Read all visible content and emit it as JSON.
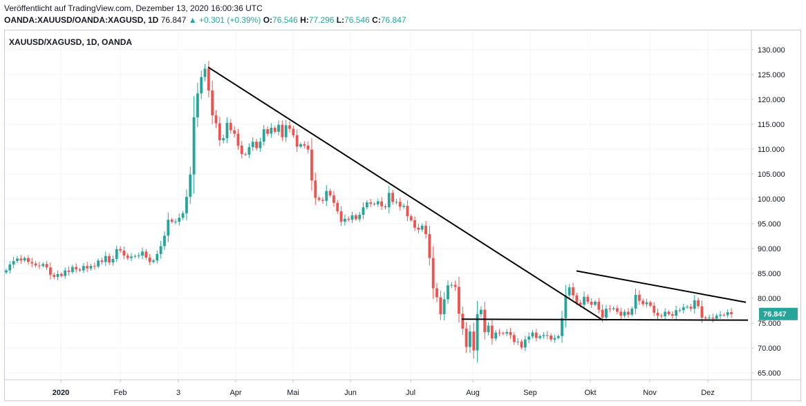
{
  "header": {
    "published": "Veröffentlicht auf TradingView.com, Dezember 13, 2020 16:00:36 UTC",
    "symbol": "OANDA:XAUUSD/OANDA:XAGUSD, 1D",
    "last": "76.847",
    "change": "▲ +0.301 (+0.39%)",
    "o_label": "O:",
    "o_value": "76.546",
    "h_label": "H:",
    "h_value": "77.296",
    "l_label": "L:",
    "l_value": "76.546",
    "c_label": "C:",
    "c_value": "76.847"
  },
  "colors": {
    "up": "#26a69a",
    "down": "#ef5350",
    "line": "#000000",
    "grid": "#f0f3fa",
    "axis": "#c8cbd3"
  },
  "chart_data": {
    "type": "candlestick",
    "title": "XAUUSD/XAGUSD, 1D, OANDA",
    "y_axis": {
      "ticks": [
        "130.000",
        "125.000",
        "120.000",
        "115.000",
        "110.000",
        "105.000",
        "100.000",
        "95.000",
        "90.000",
        "85.000",
        "80.000",
        "75.000",
        "70.000",
        "65.000"
      ],
      "range": [
        63.5,
        131.5
      ],
      "position": "right"
    },
    "x_axis": {
      "labels": [
        "2020",
        "Feb",
        "3",
        "Apr",
        "Mai",
        "Jun",
        "Jul",
        "Aug",
        "Sep",
        "Okt",
        "Nov",
        "Dez"
      ]
    },
    "last_price": "76.847",
    "trend_lines": [
      {
        "name": "descending-resistance",
        "from": [
          0.0,
          126.5
        ],
        "to": [
          1.0,
          75.6
        ]
      },
      {
        "name": "triangle-upper",
        "from": [
          0.0,
          85.5
        ],
        "to": [
          1.0,
          79.2
        ]
      },
      {
        "name": "triangle-base",
        "from": [
          0.0,
          75.8
        ],
        "to": [
          1.0,
          75.6
        ]
      }
    ],
    "closes": [
      85.6,
      86.8,
      87.5,
      88.0,
      87.6,
      88.1,
      87.3,
      87.0,
      86.6,
      86.5,
      86.9,
      86.2,
      84.7,
      84.3,
      84.9,
      84.5,
      85.6,
      85.3,
      86.3,
      85.8,
      85.6,
      86.5,
      86.0,
      86.5,
      86.4,
      87.6,
      87.3,
      88.5,
      87.2,
      87.9,
      89.9,
      89.6,
      88.6,
      88.1,
      88.4,
      88.5,
      88.6,
      89.4,
      88.2,
      87.3,
      87.6,
      88.9,
      90.5,
      92.6,
      95.8,
      95.4,
      95.4,
      96.2,
      97.1,
      100.4,
      104.9,
      116.4,
      121.2,
      124.5,
      126.2,
      121.8,
      116.8,
      115.2,
      111.8,
      112.2,
      115.3,
      113.8,
      113.1,
      110.7,
      109.0,
      108.9,
      110.4,
      111.5,
      110.2,
      111.5,
      114.0,
      113.1,
      114.3,
      113.5,
      114.9,
      112.4,
      114.8,
      114.1,
      112.8,
      110.5,
      111.0,
      110.7,
      109.9,
      103.7,
      100.2,
      99.8,
      99.6,
      101.6,
      100.7,
      99.2,
      97.5,
      95.4,
      96.0,
      95.8,
      96.7,
      95.9,
      96.8,
      98.3,
      99.3,
      99.0,
      98.9,
      99.5,
      98.5,
      98.3,
      101.2,
      99.4,
      99.4,
      98.4,
      98.6,
      96.5,
      95.7,
      94.2,
      93.8,
      94.6,
      92.9,
      88.1,
      82.0,
      80.2,
      76.8,
      79.8,
      82.6,
      82.7,
      82.3,
      76.9,
      73.9,
      70.2,
      73.3,
      69.5,
      76.8,
      77.7,
      73.2,
      74.5,
      71.9,
      73.1,
      73.0,
      72.9,
      73.2,
      72.6,
      71.2,
      71.3,
      70.1,
      71.7,
      72.3,
      73.1,
      72.0,
      72.4,
      72.6,
      72.5,
      71.7,
      72.0,
      72.4,
      76.0,
      80.6,
      82.2,
      80.6,
      79.1,
      78.7,
      80.3,
      79.3,
      78.7,
      79.3,
      77.7,
      76.1,
      77.9,
      77.8,
      78.0,
      77.3,
      76.5,
      77.3,
      76.7,
      77.9,
      80.7,
      79.5,
      78.8,
      79.2,
      78.5,
      77.1,
      76.5,
      76.4,
      77.3,
      76.8,
      76.5,
      77.6,
      77.6,
      78.2,
      78.3,
      77.9,
      79.6,
      78.4,
      76.1,
      76.0,
      76.1,
      75.9,
      76.5,
      76.7,
      76.6,
      77.2,
      76.8
    ]
  }
}
